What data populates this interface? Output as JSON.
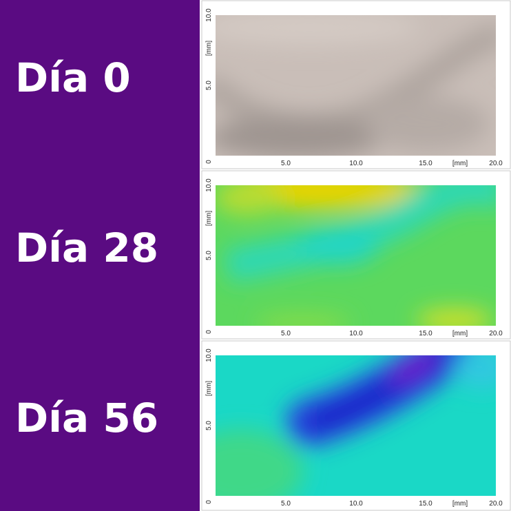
{
  "panels": [
    {
      "label": "Día 0",
      "origin": "0",
      "y_labels": [
        "10.0",
        "[mm]",
        "5.0"
      ],
      "x_labels": [
        "5.0",
        "10.0",
        "15.0",
        "[mm]",
        "20.0"
      ]
    },
    {
      "label": "Día 28",
      "origin": "0",
      "y_labels": [
        "10.0",
        "[mm]",
        "5.0"
      ],
      "x_labels": [
        "5.0",
        "10.0",
        "15.0",
        "[mm]",
        "20.0"
      ]
    },
    {
      "label": "Día 56",
      "origin": "0",
      "y_labels": [
        "10.0",
        "[mm]",
        "5.0"
      ],
      "x_labels": [
        "5.0",
        "10.0",
        "15.0",
        "[mm]",
        "20.0"
      ]
    }
  ]
}
